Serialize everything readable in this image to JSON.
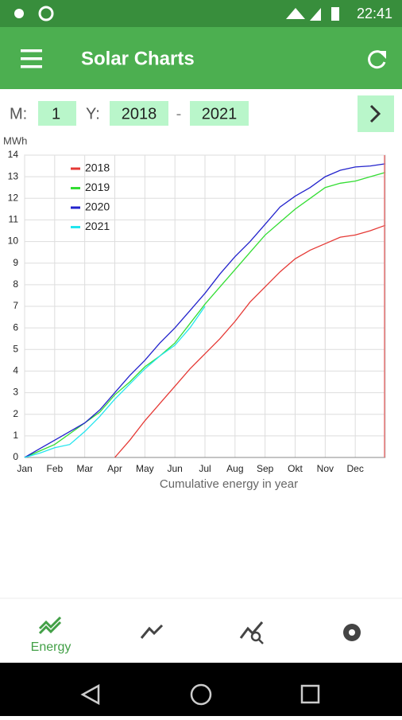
{
  "status_bar": {
    "time": "22:41"
  },
  "app_bar": {
    "title": "Solar Charts"
  },
  "controls": {
    "month_label": "M:",
    "month": "1",
    "year_label": "Y:",
    "year_from": "2018",
    "separator": "-",
    "year_to": "2021"
  },
  "bottom_nav": {
    "active_label": "Energy"
  },
  "chart_data": {
    "type": "line",
    "y_label": "MWh",
    "x_label": "Cumulative energy in year",
    "xlim": [
      0,
      12
    ],
    "ylim": [
      0,
      14
    ],
    "yticks": [
      0,
      1,
      2,
      3,
      4,
      5,
      6,
      7,
      8,
      9,
      10,
      11,
      12,
      13,
      14
    ],
    "xticks": [
      {
        "value": 0,
        "label": "Jan"
      },
      {
        "value": 1,
        "label": "Feb"
      },
      {
        "value": 2,
        "label": "Mar"
      },
      {
        "value": 3,
        "label": "Apr"
      },
      {
        "value": 4,
        "label": "May"
      },
      {
        "value": 5,
        "label": "Jun"
      },
      {
        "value": 6,
        "label": "Jul"
      },
      {
        "value": 7,
        "label": "Aug"
      },
      {
        "value": 8,
        "label": "Sep"
      },
      {
        "value": 9,
        "label": "Okt"
      },
      {
        "value": 10,
        "label": "Nov"
      },
      {
        "value": 11,
        "label": "Dec"
      }
    ],
    "grid": true,
    "legend": "upper left",
    "x": [
      0,
      0.5,
      1,
      1.5,
      2,
      2.5,
      3,
      3.5,
      4,
      4.5,
      5,
      5.5,
      6,
      6.5,
      7,
      7.5,
      8,
      8.5,
      9,
      9.5,
      10,
      10.5,
      11,
      11.5,
      12
    ],
    "series": [
      {
        "name": "2018",
        "color": "#e53935",
        "values": [
          null,
          null,
          null,
          null,
          null,
          null,
          0,
          0.8,
          1.7,
          2.5,
          3.3,
          4.1,
          4.8,
          5.5,
          6.3,
          7.2,
          7.9,
          8.6,
          9.2,
          9.6,
          9.9,
          10.2,
          10.3,
          10.5,
          10.75
        ]
      },
      {
        "name": "2019",
        "color": "#33dd33",
        "values": [
          0,
          0.3,
          0.6,
          1.1,
          1.6,
          2.1,
          2.9,
          3.5,
          4.2,
          4.7,
          5.3,
          6.2,
          7.1,
          7.9,
          8.7,
          9.5,
          10.3,
          10.9,
          11.5,
          12.0,
          12.5,
          12.7,
          12.8,
          13.0,
          13.2
        ]
      },
      {
        "name": "2020",
        "color": "#2222cc",
        "values": [
          0,
          0.4,
          0.8,
          1.2,
          1.6,
          2.2,
          3.0,
          3.8,
          4.5,
          5.3,
          6.0,
          6.8,
          7.6,
          8.5,
          9.3,
          10.0,
          10.8,
          11.6,
          12.1,
          12.5,
          13.0,
          13.3,
          13.45,
          13.5,
          13.6
        ]
      },
      {
        "name": "2021",
        "color": "#22e5ee",
        "values": [
          0,
          0.2,
          0.45,
          0.6,
          1.2,
          1.9,
          2.7,
          3.4,
          4.1,
          4.7,
          5.2,
          6.0,
          7.0,
          null,
          null,
          null,
          null,
          null,
          null,
          null,
          null,
          null,
          null,
          null,
          null
        ]
      }
    ]
  }
}
